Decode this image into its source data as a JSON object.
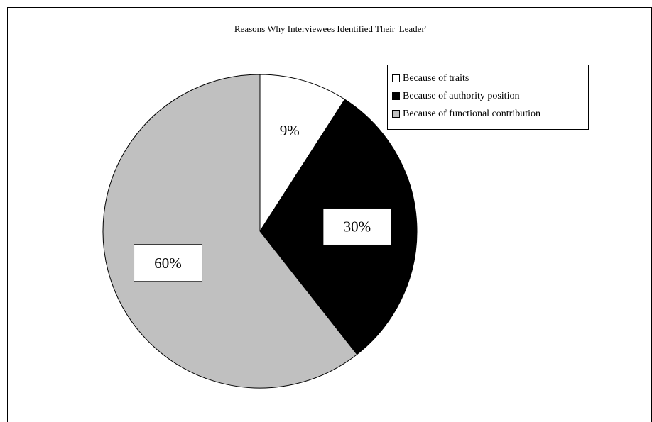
{
  "chart_data": {
    "type": "pie",
    "title": "Reasons Why Interviewees Identified Their 'Leader'",
    "categories": [
      "Because of traits",
      "Because of authority position",
      "Because of functional contribution"
    ],
    "values": [
      9,
      30,
      60
    ],
    "data_labels": [
      "9%",
      "30%",
      "60%"
    ],
    "colors": [
      "#ffffff",
      "#000000",
      "#c0c0c0"
    ],
    "legend_position": "top-right",
    "start_angle_deg": 0,
    "direction": "clockwise"
  }
}
